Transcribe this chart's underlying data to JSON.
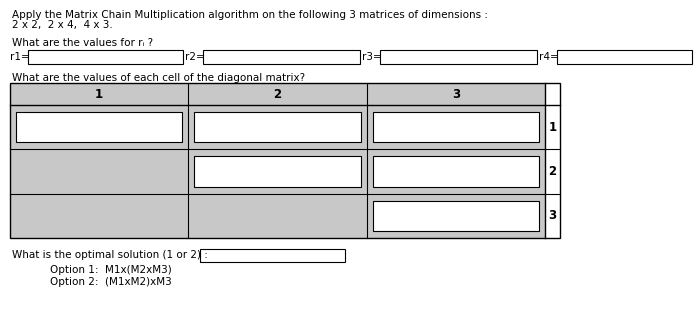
{
  "title_line1": "Apply the Matrix Chain Multiplication algorithm on the following 3 matrices of dimensions :",
  "title_line2": "2 x 2,  2 x 4,  4 x 3.",
  "question1": "What are the values for rᵢ ?",
  "r_labels": [
    "r1=",
    "r2=",
    "r3=",
    "r4="
  ],
  "question2": "What are the values of each cell of the diagonal matrix?",
  "col_headers": [
    "1",
    "2",
    "3"
  ],
  "row_labels": [
    "1",
    "2",
    "3"
  ],
  "question3": "What is the optimal solution (1 or 2) :",
  "option1": "Option 1:  M1x(M2xM3)",
  "option2": "Option 2:  (M1xM2)xM3",
  "bg_color": "#ffffff",
  "box_color": "#ffffff",
  "box_edge_color": "#000000",
  "text_color": "#000000",
  "grid_bg": "#c8c8c8",
  "title_fontsize": 7.5,
  "label_fontsize": 7.5,
  "header_fontsize": 8.5
}
